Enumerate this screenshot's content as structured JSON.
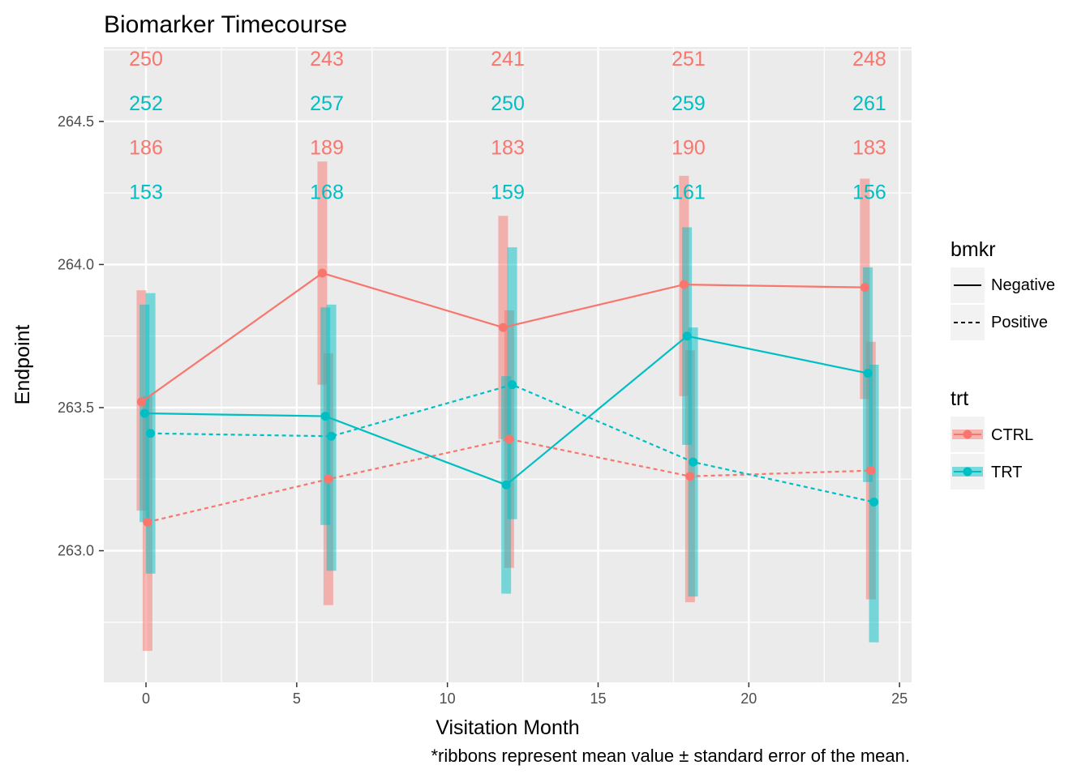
{
  "chart_data": {
    "type": "line",
    "title": "Biomarker Timecourse",
    "xlabel": "Visitation Month",
    "ylabel": "Endpoint",
    "caption": "*ribbons represent mean value ± standard error of the mean.",
    "xlim": [
      -1.4,
      25.4
    ],
    "ylim": [
      262.54,
      264.76
    ],
    "x_ticks": [
      0,
      5,
      10,
      15,
      20,
      25
    ],
    "y_ticks": [
      263.0,
      263.5,
      264.0,
      264.5
    ],
    "y_tick_labels": [
      "263.0",
      "263.5",
      "264.0",
      "264.5"
    ],
    "grid": true,
    "legend_position": "right",
    "colors": {
      "CTRL": "#F8766D",
      "TRT": "#00BFC4"
    },
    "legends": [
      {
        "title": "bmkr",
        "entries": [
          {
            "label": "Negative",
            "linetype": "solid"
          },
          {
            "label": "Positive",
            "linetype": "dashed"
          }
        ]
      },
      {
        "title": "trt",
        "entries": [
          {
            "label": "CTRL",
            "color": "#F8766D"
          },
          {
            "label": "TRT",
            "color": "#00BFC4"
          }
        ]
      }
    ],
    "series": [
      {
        "trt": "CTRL",
        "bmkr": "Negative",
        "x": [
          -0.15,
          5.85,
          11.85,
          17.85,
          23.85
        ],
        "y": [
          263.52,
          263.97,
          263.78,
          263.93,
          263.92
        ],
        "ymin": [
          263.14,
          263.58,
          263.39,
          263.54,
          263.53
        ],
        "ymax": [
          263.91,
          264.36,
          264.17,
          264.31,
          264.3
        ]
      },
      {
        "trt": "CTRL",
        "bmkr": "Positive",
        "x": [
          0.05,
          6.05,
          12.05,
          18.05,
          24.05
        ],
        "y": [
          263.1,
          263.25,
          263.39,
          263.26,
          263.28
        ],
        "ymin": [
          262.65,
          262.81,
          262.94,
          262.82,
          262.83
        ],
        "ymax": [
          263.54,
          263.69,
          263.84,
          263.7,
          263.73
        ]
      },
      {
        "trt": "TRT",
        "bmkr": "Negative",
        "x": [
          -0.05,
          5.95,
          11.95,
          17.95,
          23.95
        ],
        "y": [
          263.48,
          263.47,
          263.23,
          263.75,
          263.62
        ],
        "ymin": [
          263.1,
          263.09,
          262.85,
          263.37,
          263.24
        ],
        "ymax": [
          263.86,
          263.85,
          263.61,
          264.13,
          263.99
        ]
      },
      {
        "trt": "TRT",
        "bmkr": "Positive",
        "x": [
          0.15,
          6.15,
          12.15,
          18.15,
          24.15
        ],
        "y": [
          263.41,
          263.4,
          263.58,
          263.31,
          263.17
        ],
        "ymin": [
          262.92,
          262.93,
          263.11,
          262.84,
          262.68
        ],
        "ymax": [
          263.9,
          263.86,
          264.06,
          263.78,
          263.65
        ]
      }
    ],
    "count_rows": [
      {
        "trt": "CTRL",
        "y": 264.72,
        "values": [
          "250",
          "243",
          "241",
          "251",
          "248"
        ]
      },
      {
        "trt": "TRT",
        "y": 264.565,
        "values": [
          "252",
          "257",
          "250",
          "259",
          "261"
        ]
      },
      {
        "trt": "CTRL",
        "y": 264.41,
        "values": [
          "186",
          "189",
          "183",
          "190",
          "183"
        ]
      },
      {
        "trt": "TRT",
        "y": 264.255,
        "values": [
          "153",
          "168",
          "159",
          "161",
          "156"
        ]
      }
    ],
    "count_x": [
      0,
      6,
      12,
      18,
      24
    ]
  }
}
